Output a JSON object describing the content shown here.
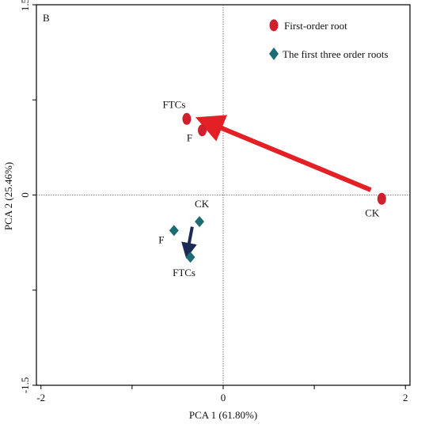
{
  "chart_data": {
    "type": "scatter",
    "panel_label": "B",
    "xlabel": "PCA 1 (61.80%)",
    "ylabel": "PCA 2 (25.46%)",
    "xlim": [
      -2.05,
      2.05
    ],
    "ylim": [
      -1.5,
      1.5
    ],
    "xticks": [
      -2,
      -1,
      0,
      1,
      2
    ],
    "xtick_labels": [
      "-2",
      "",
      "0",
      "",
      "2"
    ],
    "yticks": [
      -1.5,
      -0.75,
      0,
      0.75,
      1.5
    ],
    "ytick_labels": [
      "-1.5",
      "",
      "0",
      "",
      "1.5"
    ],
    "reference_lines": {
      "x": 0,
      "y": 0,
      "style": "dotted"
    },
    "legend_position": "top-right",
    "series": [
      {
        "name": "First-order root",
        "marker": "circle",
        "color": "#d0202e",
        "points": [
          {
            "label": "FTCs",
            "x": -0.4,
            "y": 0.6
          },
          {
            "label": "F",
            "x": -0.23,
            "y": 0.51
          },
          {
            "label": "CK",
            "x": 1.74,
            "y": -0.03
          }
        ]
      },
      {
        "name": "The first three order roots",
        "marker": "diamond",
        "color": "#1d6b73",
        "points": [
          {
            "label": "CK",
            "x": -0.26,
            "y": -0.21
          },
          {
            "label": "F",
            "x": -0.54,
            "y": -0.28
          },
          {
            "label": "FTCs",
            "x": -0.36,
            "y": -0.49
          }
        ]
      }
    ],
    "arrows": [
      {
        "from": [
          1.62,
          0.04
        ],
        "to": [
          -0.16,
          0.57
        ],
        "color": "#e32026"
      },
      {
        "from": [
          -0.34,
          -0.25
        ],
        "to": [
          -0.39,
          -0.44
        ],
        "color": "#1c2a55"
      }
    ]
  }
}
